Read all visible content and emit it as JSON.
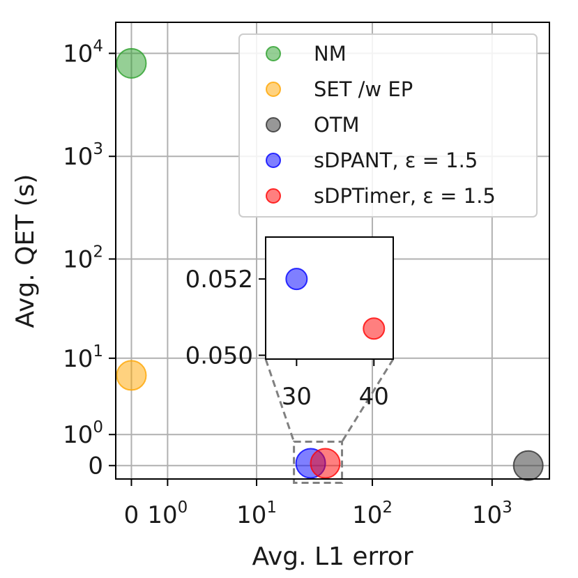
{
  "chart_data": {
    "type": "scatter",
    "title": "",
    "xlabel": "Avg. L1 error",
    "ylabel": "Avg. QET (s)",
    "x_scale": "symlog",
    "y_scale": "symlog",
    "xlim": [
      -0.35,
      3000
    ],
    "ylim": [
      -0.35,
      20000
    ],
    "grid": true,
    "x_ticks": [
      {
        "value": 0,
        "base": "0",
        "exp": ""
      },
      {
        "value": 1,
        "base": "10",
        "exp": "0"
      },
      {
        "value": 10,
        "base": "10",
        "exp": "1"
      },
      {
        "value": 100,
        "base": "10",
        "exp": "2"
      },
      {
        "value": 1000,
        "base": "10",
        "exp": "3"
      }
    ],
    "y_ticks": [
      {
        "value": 0,
        "base": "0",
        "exp": ""
      },
      {
        "value": 1,
        "base": "10",
        "exp": "0"
      },
      {
        "value": 10,
        "base": "10",
        "exp": "1"
      },
      {
        "value": 100,
        "base": "10",
        "exp": "2"
      },
      {
        "value": 1000,
        "base": "10",
        "exp": "3"
      },
      {
        "value": 10000,
        "base": "10",
        "exp": "4"
      }
    ],
    "legend_position": "top-right",
    "series": [
      {
        "name": "NM",
        "color": "#2ca02c",
        "x": 0,
        "y": 8000
      },
      {
        "name": "SET /w EP",
        "color": "#ffa500",
        "x": 0,
        "y": 6.5
      },
      {
        "name": "OTM",
        "color": "#303030",
        "x": 2000,
        "y": 0
      },
      {
        "name": "sDPANT, ε = 1.5",
        "color": "#0000ff",
        "x": 30,
        "y": 0.052
      },
      {
        "name": "sDPTimer, ε = 1.5",
        "color": "#ff0000",
        "x": 40,
        "y": 0.0507
      }
    ],
    "inset": {
      "xlim": [
        26,
        42.5
      ],
      "ylim": [
        0.0499,
        0.0531
      ],
      "x_ticks": [
        {
          "value": 30,
          "label": "30"
        },
        {
          "value": 40,
          "label": "40"
        }
      ],
      "y_ticks": [
        {
          "value": 0.05,
          "label": "0.050"
        },
        {
          "value": 0.052,
          "label": "0.052"
        }
      ]
    }
  }
}
